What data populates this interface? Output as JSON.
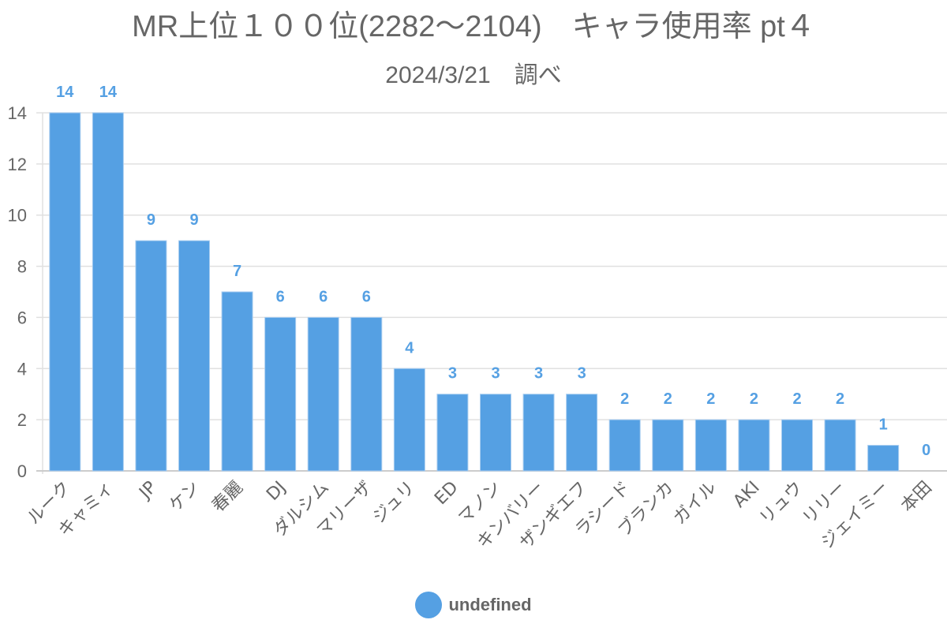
{
  "chart_data": {
    "type": "bar",
    "title": "MR上位１００位(2282～2104)　キャラ使用率 pt４",
    "subtitle": "2024/3/21　調べ",
    "xlabel": "",
    "ylabel": "",
    "categories": [
      "ルーク",
      "キャミィ",
      "JP",
      "ケン",
      "春麗",
      "DJ",
      "ダルシム",
      "マリーザ",
      "ジュリ",
      "ED",
      "マノン",
      "キンバリー",
      "ザンギエフ",
      "ラシード",
      "ブランカ",
      "ガイル",
      "AKI",
      "リュウ",
      "リリー",
      "ジェイミー",
      "本田"
    ],
    "series": [
      {
        "name": "undefined",
        "color": "#55a0e3",
        "values": [
          14,
          14,
          9,
          9,
          7,
          6,
          6,
          6,
          4,
          3,
          3,
          3,
          3,
          2,
          2,
          2,
          2,
          2,
          2,
          1,
          0
        ]
      }
    ],
    "ylim": [
      0,
      14
    ],
    "yticks": [
      0,
      2,
      4,
      6,
      8,
      10,
      12,
      14
    ],
    "grid": true,
    "data_labels": true,
    "legend_position": "bottom"
  },
  "colors": {
    "bar": "#55a0e3",
    "label": "#55a0e3",
    "axis_text": "#666666",
    "grid": "#e0e0e0",
    "axis_line": "#cccccc"
  },
  "legend": {
    "label": "undefined"
  }
}
